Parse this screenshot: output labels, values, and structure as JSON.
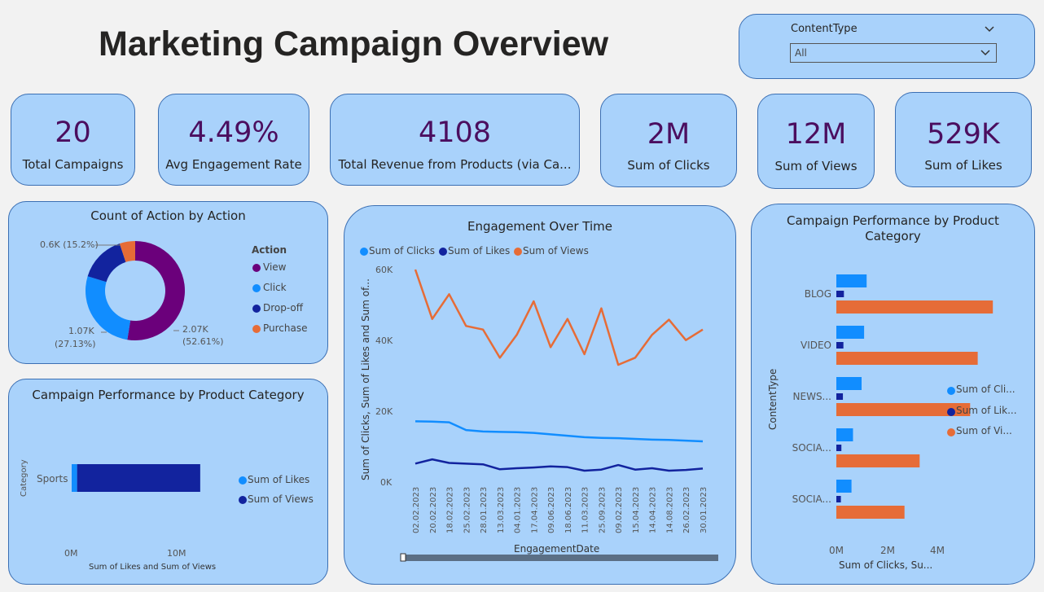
{
  "page_title": "Marketing Campaign Overview",
  "slicer": {
    "label": "ContentType",
    "value": "All"
  },
  "kpis": [
    {
      "value": "20",
      "label": "Total Campaigns"
    },
    {
      "value": "4.49%",
      "label": "Avg Engagement Rate"
    },
    {
      "value": "4108",
      "label": "Total Revenue from Products (via Ca..."
    },
    {
      "value": "2M",
      "label": "Sum of Clicks"
    },
    {
      "value": "12M",
      "label": "Sum of Views"
    },
    {
      "value": "529K",
      "label": "Sum of Likes"
    }
  ],
  "colors": {
    "clicks": "#118dff",
    "likes": "#12239e",
    "views": "#e66c37",
    "view": "#6b007b",
    "click": "#118dff",
    "dropoff": "#12239e",
    "purchase": "#e66c37"
  },
  "chart_data": [
    {
      "type": "pie",
      "title": "Count of Action by Action",
      "legend_title": "Action",
      "legend_position": "right",
      "categories": [
        "View",
        "Click",
        "Drop-off",
        "Purchase"
      ],
      "values": [
        2070,
        1070,
        600,
        200
      ],
      "data_labels": [
        {
          "value": "2.07K",
          "pct": "(52.61%)"
        },
        {
          "value": "1.07K",
          "pct": "(27.13%)"
        },
        {
          "value": "0.6K (15.2%)",
          "pct": ""
        }
      ]
    },
    {
      "type": "bar",
      "title": "Campaign Performance by Product Category",
      "orientation": "horizontal",
      "stacked": true,
      "categories": [
        "Sports"
      ],
      "ylabel": "Category",
      "xlabel": "Sum of Likes and Sum of Views",
      "xticks": [
        "0M",
        "10M"
      ],
      "xlim": [
        0,
        15000000
      ],
      "legend_position": "right",
      "series": [
        {
          "name": "Sum of Likes",
          "values": [
            529000
          ]
        },
        {
          "name": "Sum of Views",
          "values": [
            12000000
          ]
        }
      ]
    },
    {
      "type": "line",
      "title": "Engagement Over Time",
      "xlabel": "EngagementDate",
      "ylabel": "Sum of Clicks, Sum of Likes and Sum of...",
      "ylim": [
        0,
        60000
      ],
      "yticks": [
        "0K",
        "20K",
        "40K",
        "60K"
      ],
      "legend_position": "top-left",
      "x": [
        "02.02.2023",
        "20.02.2023",
        "18.02.2023",
        "25.02.2023",
        "28.01.2023",
        "13.03.2023",
        "04.01.2023",
        "17.04.2023",
        "09.06.2023",
        "18.06.2023",
        "11.03.2023",
        "25.09.2023",
        "09.02.2023",
        "15.04.2023",
        "14.04.2023",
        "14.08.2023",
        "26.02.2023",
        "30.01.2023"
      ],
      "series": [
        {
          "name": "Sum of Clicks",
          "values": [
            17000,
            16900,
            16700,
            14500,
            14100,
            14000,
            13900,
            13700,
            13300,
            12900,
            12500,
            12300,
            12200,
            12000,
            11800,
            11700,
            11500,
            11300
          ]
        },
        {
          "name": "Sum of Likes",
          "values": [
            5000,
            6200,
            5200,
            5000,
            4800,
            3400,
            3700,
            3900,
            4200,
            4000,
            3000,
            3300,
            4600,
            3300,
            3700,
            3000,
            3200,
            3600
          ]
        },
        {
          "name": "Sum of Views",
          "values": [
            60000,
            46000,
            53000,
            44000,
            43000,
            35000,
            41500,
            51000,
            38000,
            46000,
            36000,
            49000,
            33000,
            35000,
            41500,
            45800,
            40000,
            43000
          ]
        }
      ]
    },
    {
      "type": "bar",
      "title": "Campaign Performance by Product Category",
      "orientation": "horizontal",
      "ylabel": "ContentType",
      "xlabel": "Sum of Clicks, Su...",
      "xticks": [
        "0M",
        "2M",
        "4M"
      ],
      "xlim": [
        0,
        4000000
      ],
      "legend_position": "right",
      "categories": [
        "BLOG",
        "VIDEO",
        "NEWS...",
        "SOCIA...",
        "SOCIA..."
      ],
      "series": [
        {
          "name": "Sum of Cli...",
          "values": [
            600000,
            550000,
            500000,
            330000,
            300000
          ]
        },
        {
          "name": "Sum of Lik...",
          "values": [
            150000,
            140000,
            130000,
            100000,
            90000
          ]
        },
        {
          "name": "Sum of Vi...",
          "values": [
            3100000,
            2800000,
            2650000,
            1650000,
            1350000
          ]
        }
      ]
    }
  ]
}
